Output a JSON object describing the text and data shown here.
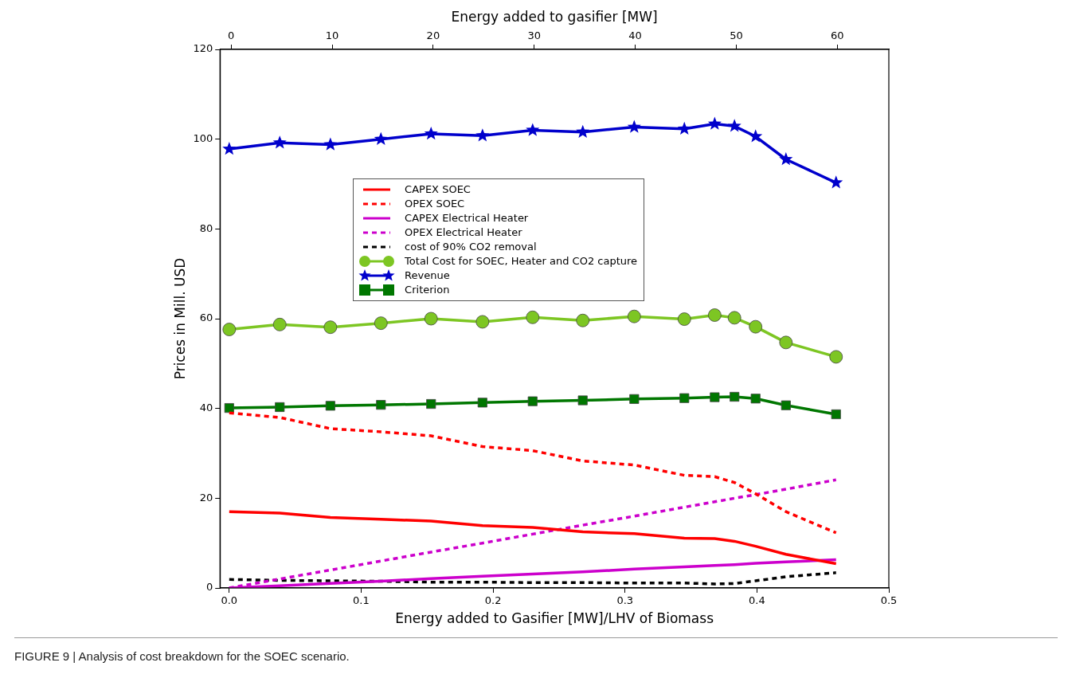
{
  "chart_data": {
    "type": "line",
    "xlabel": "Energy added to Gasifier [MW]/LHV of Biomass",
    "x2label": "Energy added to gasifier [MW]",
    "ylabel": "Prices in Mill. USD",
    "xlim": [
      -0.007,
      0.5
    ],
    "xticks": [
      {
        "value": 0,
        "label": "0.0"
      },
      0.1,
      0.2,
      0.3,
      0.4,
      0.5
    ],
    "x2lim": [
      -1.1,
      65.1
    ],
    "x2ticks": [
      0,
      10,
      20,
      30,
      40,
      50,
      60
    ],
    "ylim": [
      0,
      120
    ],
    "yticks": [
      0,
      20,
      40,
      60,
      80,
      100,
      120
    ],
    "x": [
      0,
      0.0383,
      0.0767,
      0.115,
      0.153,
      0.192,
      0.23,
      0.268,
      0.307,
      0.345,
      0.368,
      0.383,
      0.399,
      0.422,
      0.46
    ],
    "grid": false,
    "legend": "top center",
    "series": [
      {
        "name": "CAPEX SOEC",
        "color": "#ff0000",
        "line_style": "solid",
        "marker": "none",
        "values": [
          17,
          16.7,
          15.7,
          15.3,
          14.9,
          13.9,
          13.5,
          12.5,
          12.1,
          11.1,
          11,
          10.4,
          9.3,
          7.5,
          5.4
        ]
      },
      {
        "name": "OPEX SOEC",
        "color": "#ff0000",
        "line_style": "dashed",
        "marker": "none",
        "values": [
          39,
          38,
          35.5,
          34.8,
          33.9,
          31.5,
          30.6,
          28.3,
          27.4,
          25.1,
          24.8,
          23.5,
          21,
          17,
          12.3
        ]
      },
      {
        "name": "CAPEX Electrical Heater",
        "color": "#cc00cc",
        "line_style": "solid",
        "marker": "none",
        "values": [
          0,
          0.5,
          1,
          1.5,
          2.1,
          2.6,
          3.1,
          3.6,
          4.2,
          4.7,
          5,
          5.2,
          5.5,
          5.8,
          6.3
        ]
      },
      {
        "name": "OPEX Electrical Heater",
        "color": "#cc00cc",
        "line_style": "dashed",
        "marker": "none",
        "values": [
          0,
          2,
          4,
          6,
          8,
          10,
          12,
          14,
          16,
          18,
          19.2,
          20,
          20.8,
          22,
          24.1
        ]
      },
      {
        "name": "cost of 90% CO2 removal",
        "color": "#000000",
        "line_style": "dashed",
        "marker": "none",
        "values": [
          1.9,
          1.7,
          1.6,
          1.5,
          1.3,
          1.3,
          1.2,
          1.2,
          1.1,
          1.1,
          0.9,
          1,
          1.6,
          2.5,
          3.4
        ]
      },
      {
        "name": "Total Cost for SOEC, Heater and CO2 capture",
        "color": "#7dc623",
        "line_style": "solid",
        "marker": "circle",
        "values": [
          57.6,
          58.7,
          58.1,
          59,
          60,
          59.3,
          60.3,
          59.6,
          60.5,
          59.9,
          60.8,
          60.2,
          58.2,
          54.7,
          51.5
        ]
      },
      {
        "name": "Revenue",
        "color": "#0000cc",
        "line_style": "solid",
        "marker": "star",
        "values": [
          97.8,
          99.2,
          98.8,
          100,
          101.2,
          100.8,
          102,
          101.6,
          102.7,
          102.3,
          103.4,
          102.9,
          100.6,
          95.5,
          90.3
        ]
      },
      {
        "name": "Criterion",
        "color": "#007700",
        "line_style": "solid",
        "marker": "square",
        "values": [
          40.1,
          40.3,
          40.6,
          40.8,
          41,
          41.3,
          41.6,
          41.8,
          42.1,
          42.3,
          42.5,
          42.6,
          42.2,
          40.7,
          38.7
        ]
      }
    ],
    "annotations": [
      "FIGURE 9 | Analysis of cost breakdown for the SOEC scenario."
    ]
  }
}
